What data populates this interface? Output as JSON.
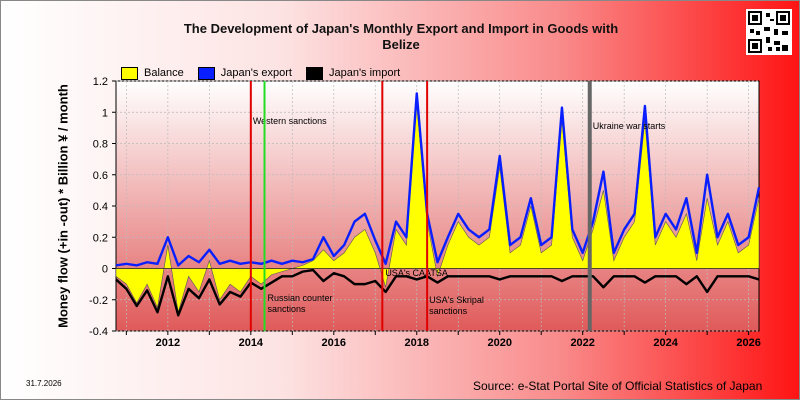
{
  "title": "The Development of Japan's Monthly Export and Import in Goods with Belize",
  "date_stamp": "31.7.2026",
  "source": "Source: e-Stat Portal Site of Official Statistics of Japan",
  "qr_icon": "qr-code-icon",
  "colors": {
    "balance": "#ffff00",
    "export": "#0a1fff",
    "import": "#000000",
    "sanction_line": "#e00000",
    "russia_line": "#22dd22",
    "ukraine_line": "#666666",
    "plot_top": "#ffffff",
    "plot_bottom": "#e05a5a"
  },
  "chart_data": {
    "type": "line",
    "title": "The Development of Japan's Monthly Export and Import in Goods with Belize",
    "ylabel": "Money flow (+in -out) * Billion ¥ / month",
    "xlabel": "",
    "xlim": [
      2010.75,
      2026.25
    ],
    "ylim": [
      -0.4,
      1.2
    ],
    "yticks": [
      -0.4,
      -0.2,
      0,
      0.2,
      0.4,
      0.6,
      0.8,
      1,
      1.2
    ],
    "ytick_labels": [
      "-0.4",
      "-0.2",
      "0",
      "0.2",
      "0.4",
      "0.6",
      "0.8",
      "1",
      "1.2"
    ],
    "xticks": [
      2012,
      2014,
      2016,
      2018,
      2020,
      2022,
      2024,
      2026
    ],
    "xtick_labels": [
      "2012",
      "2014",
      "2016",
      "2018",
      "2020",
      "2022",
      "2024",
      "2026"
    ],
    "grid": true,
    "legend": "top-left",
    "series": [
      {
        "name": "Balance",
        "role": "balance",
        "points": [
          [
            2010.75,
            -0.05
          ],
          [
            2011.0,
            -0.1
          ],
          [
            2011.25,
            -0.22
          ],
          [
            2011.5,
            -0.1
          ],
          [
            2011.75,
            -0.25
          ],
          [
            2012.0,
            0.15
          ],
          [
            2012.25,
            -0.28
          ],
          [
            2012.5,
            -0.05
          ],
          [
            2012.75,
            -0.15
          ],
          [
            2013.0,
            0.05
          ],
          [
            2013.25,
            -0.2
          ],
          [
            2013.5,
            -0.1
          ],
          [
            2013.75,
            -0.15
          ],
          [
            2014.0,
            -0.05
          ],
          [
            2014.25,
            -0.1
          ],
          [
            2014.5,
            -0.04
          ],
          [
            2014.75,
            -0.02
          ],
          [
            2015.0,
            0.0
          ],
          [
            2015.25,
            0.02
          ],
          [
            2015.5,
            0.05
          ],
          [
            2015.75,
            0.12
          ],
          [
            2016.0,
            0.05
          ],
          [
            2016.25,
            0.1
          ],
          [
            2016.5,
            0.2
          ],
          [
            2016.75,
            0.25
          ],
          [
            2017.0,
            0.1
          ],
          [
            2017.25,
            -0.12
          ],
          [
            2017.5,
            0.25
          ],
          [
            2017.75,
            0.15
          ],
          [
            2018.0,
            1.05
          ],
          [
            2018.25,
            0.3
          ],
          [
            2018.5,
            -0.05
          ],
          [
            2018.75,
            0.15
          ],
          [
            2019.0,
            0.3
          ],
          [
            2019.25,
            0.2
          ],
          [
            2019.5,
            0.15
          ],
          [
            2019.75,
            0.2
          ],
          [
            2020.0,
            0.65
          ],
          [
            2020.25,
            0.1
          ],
          [
            2020.5,
            0.15
          ],
          [
            2020.75,
            0.4
          ],
          [
            2021.0,
            0.1
          ],
          [
            2021.25,
            0.15
          ],
          [
            2021.5,
            0.95
          ],
          [
            2021.75,
            0.2
          ],
          [
            2022.0,
            0.05
          ],
          [
            2022.25,
            0.25
          ],
          [
            2022.5,
            0.5
          ],
          [
            2022.75,
            0.05
          ],
          [
            2023.0,
            0.2
          ],
          [
            2023.25,
            0.3
          ],
          [
            2023.5,
            0.95
          ],
          [
            2023.75,
            0.15
          ],
          [
            2024.0,
            0.3
          ],
          [
            2024.25,
            0.2
          ],
          [
            2024.5,
            0.35
          ],
          [
            2024.75,
            0.05
          ],
          [
            2025.0,
            0.45
          ],
          [
            2025.25,
            0.15
          ],
          [
            2025.5,
            0.3
          ],
          [
            2025.75,
            0.1
          ],
          [
            2026.0,
            0.15
          ],
          [
            2026.25,
            0.45
          ]
        ]
      },
      {
        "name": "Japan's export",
        "role": "export",
        "points": [
          [
            2010.75,
            0.02
          ],
          [
            2011.0,
            0.03
          ],
          [
            2011.25,
            0.02
          ],
          [
            2011.5,
            0.04
          ],
          [
            2011.75,
            0.03
          ],
          [
            2012.0,
            0.2
          ],
          [
            2012.25,
            0.02
          ],
          [
            2012.5,
            0.08
          ],
          [
            2012.75,
            0.04
          ],
          [
            2013.0,
            0.12
          ],
          [
            2013.25,
            0.03
          ],
          [
            2013.5,
            0.05
          ],
          [
            2013.75,
            0.03
          ],
          [
            2014.0,
            0.04
          ],
          [
            2014.25,
            0.03
          ],
          [
            2014.5,
            0.05
          ],
          [
            2014.75,
            0.03
          ],
          [
            2015.0,
            0.05
          ],
          [
            2015.25,
            0.04
          ],
          [
            2015.5,
            0.06
          ],
          [
            2015.75,
            0.2
          ],
          [
            2016.0,
            0.08
          ],
          [
            2016.25,
            0.15
          ],
          [
            2016.5,
            0.3
          ],
          [
            2016.75,
            0.35
          ],
          [
            2017.0,
            0.18
          ],
          [
            2017.25,
            0.03
          ],
          [
            2017.5,
            0.3
          ],
          [
            2017.75,
            0.2
          ],
          [
            2018.0,
            1.12
          ],
          [
            2018.25,
            0.35
          ],
          [
            2018.5,
            0.04
          ],
          [
            2018.75,
            0.2
          ],
          [
            2019.0,
            0.35
          ],
          [
            2019.25,
            0.25
          ],
          [
            2019.5,
            0.2
          ],
          [
            2019.75,
            0.25
          ],
          [
            2020.0,
            0.72
          ],
          [
            2020.25,
            0.15
          ],
          [
            2020.5,
            0.2
          ],
          [
            2020.75,
            0.45
          ],
          [
            2021.0,
            0.15
          ],
          [
            2021.25,
            0.2
          ],
          [
            2021.5,
            1.03
          ],
          [
            2021.75,
            0.25
          ],
          [
            2022.0,
            0.1
          ],
          [
            2022.25,
            0.3
          ],
          [
            2022.5,
            0.62
          ],
          [
            2022.75,
            0.1
          ],
          [
            2023.0,
            0.25
          ],
          [
            2023.25,
            0.35
          ],
          [
            2023.5,
            1.04
          ],
          [
            2023.75,
            0.2
          ],
          [
            2024.0,
            0.35
          ],
          [
            2024.25,
            0.25
          ],
          [
            2024.5,
            0.45
          ],
          [
            2024.75,
            0.1
          ],
          [
            2025.0,
            0.6
          ],
          [
            2025.25,
            0.2
          ],
          [
            2025.5,
            0.35
          ],
          [
            2025.75,
            0.15
          ],
          [
            2026.0,
            0.2
          ],
          [
            2026.25,
            0.52
          ]
        ]
      },
      {
        "name": "Japan's import",
        "role": "import",
        "points": [
          [
            2010.75,
            -0.07
          ],
          [
            2011.0,
            -0.13
          ],
          [
            2011.25,
            -0.24
          ],
          [
            2011.5,
            -0.14
          ],
          [
            2011.75,
            -0.28
          ],
          [
            2012.0,
            -0.05
          ],
          [
            2012.25,
            -0.3
          ],
          [
            2012.5,
            -0.13
          ],
          [
            2012.75,
            -0.19
          ],
          [
            2013.0,
            -0.07
          ],
          [
            2013.25,
            -0.23
          ],
          [
            2013.5,
            -0.15
          ],
          [
            2013.75,
            -0.18
          ],
          [
            2014.0,
            -0.09
          ],
          [
            2014.25,
            -0.13
          ],
          [
            2014.5,
            -0.09
          ],
          [
            2014.75,
            -0.05
          ],
          [
            2015.0,
            -0.05
          ],
          [
            2015.25,
            -0.02
          ],
          [
            2015.5,
            -0.01
          ],
          [
            2015.75,
            -0.08
          ],
          [
            2016.0,
            -0.03
          ],
          [
            2016.25,
            -0.05
          ],
          [
            2016.5,
            -0.1
          ],
          [
            2016.75,
            -0.1
          ],
          [
            2017.0,
            -0.08
          ],
          [
            2017.25,
            -0.15
          ],
          [
            2017.5,
            -0.05
          ],
          [
            2017.75,
            -0.05
          ],
          [
            2018.0,
            -0.07
          ],
          [
            2018.25,
            -0.05
          ],
          [
            2018.5,
            -0.09
          ],
          [
            2018.75,
            -0.05
          ],
          [
            2019.0,
            -0.05
          ],
          [
            2019.25,
            -0.05
          ],
          [
            2019.5,
            -0.05
          ],
          [
            2019.75,
            -0.05
          ],
          [
            2020.0,
            -0.07
          ],
          [
            2020.25,
            -0.05
          ],
          [
            2020.5,
            -0.05
          ],
          [
            2020.75,
            -0.05
          ],
          [
            2021.0,
            -0.05
          ],
          [
            2021.25,
            -0.05
          ],
          [
            2021.5,
            -0.08
          ],
          [
            2021.75,
            -0.05
          ],
          [
            2022.0,
            -0.05
          ],
          [
            2022.25,
            -0.05
          ],
          [
            2022.5,
            -0.12
          ],
          [
            2022.75,
            -0.05
          ],
          [
            2023.0,
            -0.05
          ],
          [
            2023.25,
            -0.05
          ],
          [
            2023.5,
            -0.09
          ],
          [
            2023.75,
            -0.05
          ],
          [
            2024.0,
            -0.05
          ],
          [
            2024.25,
            -0.05
          ],
          [
            2024.5,
            -0.1
          ],
          [
            2024.75,
            -0.05
          ],
          [
            2025.0,
            -0.15
          ],
          [
            2025.25,
            -0.05
          ],
          [
            2025.5,
            -0.05
          ],
          [
            2025.75,
            -0.05
          ],
          [
            2026.0,
            -0.05
          ],
          [
            2026.25,
            -0.07
          ]
        ]
      }
    ],
    "vlines": [
      {
        "x": 2014.0,
        "kind": "sanction",
        "label": "Western sanctions"
      },
      {
        "x": 2014.33,
        "kind": "russia",
        "label": "Russian counter sanctions"
      },
      {
        "x": 2017.17,
        "kind": "sanction",
        "label": "USA's CAATSA"
      },
      {
        "x": 2018.25,
        "kind": "sanction",
        "label": "USA's Skripal sanctions"
      },
      {
        "x": 2022.17,
        "kind": "ukraine",
        "label": "Ukraine war starts"
      }
    ]
  }
}
